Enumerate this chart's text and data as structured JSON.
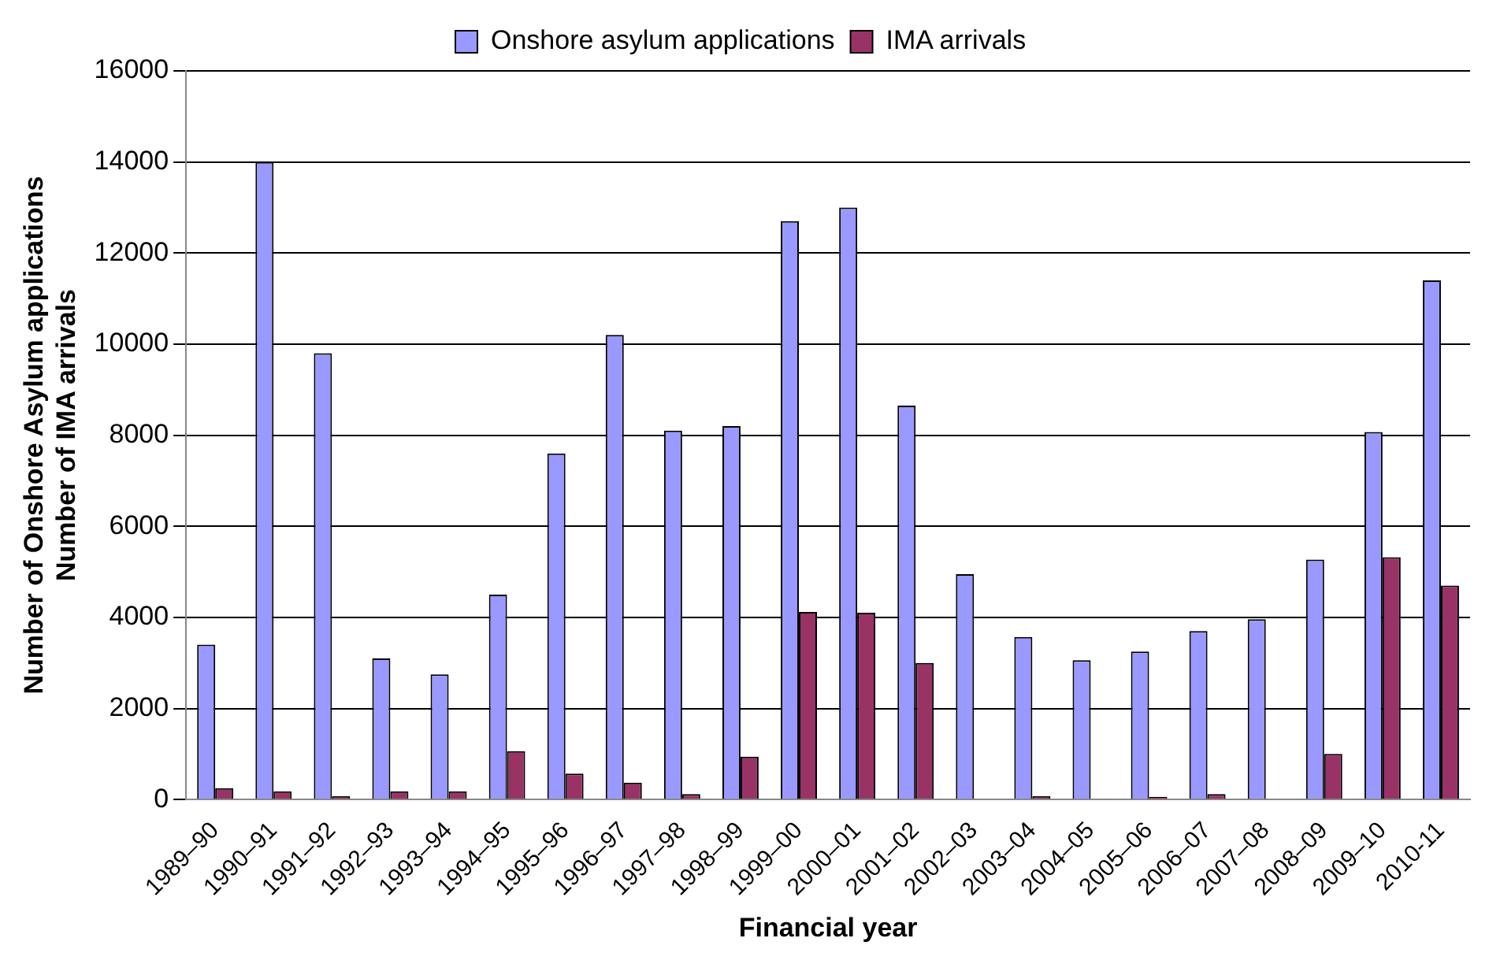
{
  "chart_data": {
    "type": "bar",
    "xlabel": "Financial year",
    "ylabel": "Number of Onshore Asylum applications\nNumber of IMA arrivals",
    "categories": [
      "1989–90",
      "1990–91",
      "1991–92",
      "1992–93",
      "1993–94",
      "1994–95",
      "1995–96",
      "1996–97",
      "1997–98",
      "1998–99",
      "1999–00",
      "2000–01",
      "2001–02",
      "2002–03",
      "2003–04",
      "2004–05",
      "2005–06",
      "2006–07",
      "2007–08",
      "2008–09",
      "2009–10",
      "2010-11"
    ],
    "series": [
      {
        "name": "Onshore asylum applications",
        "color": "#9999ff",
        "values": [
          3400,
          14000,
          9800,
          3100,
          2750,
          4500,
          7600,
          10200,
          8100,
          8200,
          12700,
          13000,
          8650,
          4950,
          3570,
          3060,
          3250,
          3700,
          3960,
          5270,
          8070,
          11400
        ]
      },
      {
        "name": "IMA arrivals",
        "color": "#993366",
        "values": [
          250,
          180,
          70,
          180,
          180,
          1060,
          570,
          370,
          120,
          940,
          4120,
          4100,
          3000,
          null,
          70,
          null,
          60,
          120,
          null,
          1000,
          5320,
          4700
        ]
      }
    ],
    "ylim": [
      0,
      16000
    ],
    "yticks": [
      0,
      2000,
      4000,
      6000,
      8000,
      10000,
      12000,
      14000,
      16000
    ],
    "grid": "y",
    "legend": "top"
  }
}
